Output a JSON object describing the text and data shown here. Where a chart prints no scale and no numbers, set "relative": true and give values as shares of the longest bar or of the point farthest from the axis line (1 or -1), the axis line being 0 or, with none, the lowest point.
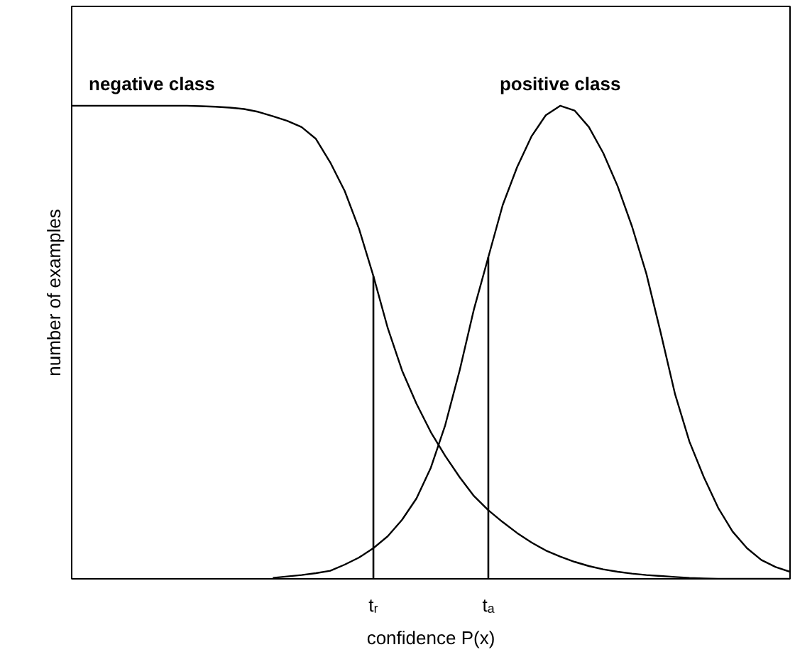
{
  "chart_data": {
    "type": "line",
    "relative": true,
    "xlabel": "confidence P(x)",
    "ylabel": "number of examples",
    "categories": [
      null,
      null,
      null,
      null,
      null,
      null,
      null,
      null,
      null,
      null,
      null,
      null,
      null,
      null,
      null,
      null,
      null,
      null,
      null,
      null,
      null,
      "tᵣ",
      null,
      null,
      null,
      null,
      null,
      null,
      null,
      "tₐ",
      null,
      null,
      null,
      null,
      null,
      null,
      null,
      null,
      null,
      null,
      null,
      null,
      null,
      null,
      null,
      null,
      null,
      null,
      null,
      null,
      null
    ],
    "grid": false,
    "marker": "none",
    "line_style": "solid",
    "series": [
      {
        "name": "negative class",
        "color": "#000000",
        "values": [
          1.0,
          1.0,
          1.0,
          1.0,
          1.0,
          1.0,
          1.0,
          1.0,
          1.0,
          0.999,
          0.998,
          0.996,
          0.993,
          0.987,
          0.978,
          0.968,
          0.955,
          0.93,
          0.88,
          0.82,
          0.74,
          0.64,
          0.53,
          0.44,
          0.37,
          0.31,
          0.26,
          0.215,
          0.175,
          0.145,
          0.12,
          0.097,
          0.077,
          0.06,
          0.047,
          0.036,
          0.027,
          0.02,
          0.015,
          0.011,
          0.008,
          0.006,
          0.004,
          0.002,
          0.001,
          0,
          0,
          0,
          0,
          0,
          0
        ]
      },
      {
        "name": "positive class",
        "color": "#000000",
        "values": [
          null,
          null,
          null,
          null,
          null,
          null,
          null,
          null,
          null,
          null,
          null,
          null,
          null,
          null,
          0.002,
          0.005,
          0.008,
          0.012,
          0.017,
          0.03,
          0.045,
          0.065,
          0.09,
          0.125,
          0.17,
          0.235,
          0.325,
          0.44,
          0.57,
          0.68,
          0.79,
          0.87,
          0.935,
          0.98,
          1.0,
          0.99,
          0.955,
          0.9,
          0.83,
          0.745,
          0.645,
          0.52,
          0.39,
          0.29,
          0.215,
          0.15,
          0.1,
          0.065,
          0.04,
          0.025,
          0.015
        ]
      },
      {
        "type": "bar",
        "color": "#000000",
        "values": [
          null,
          null,
          null,
          null,
          null,
          null,
          null,
          null,
          null,
          null,
          null,
          null,
          null,
          null,
          null,
          null,
          null,
          null,
          null,
          null,
          null,
          0.64,
          null,
          null,
          null,
          null,
          null,
          null,
          null,
          0.68,
          null,
          null,
          null,
          null,
          null,
          null,
          null,
          null,
          null,
          null,
          null,
          null,
          null,
          null,
          null,
          null,
          null,
          null,
          null,
          null,
          null
        ]
      }
    ]
  }
}
